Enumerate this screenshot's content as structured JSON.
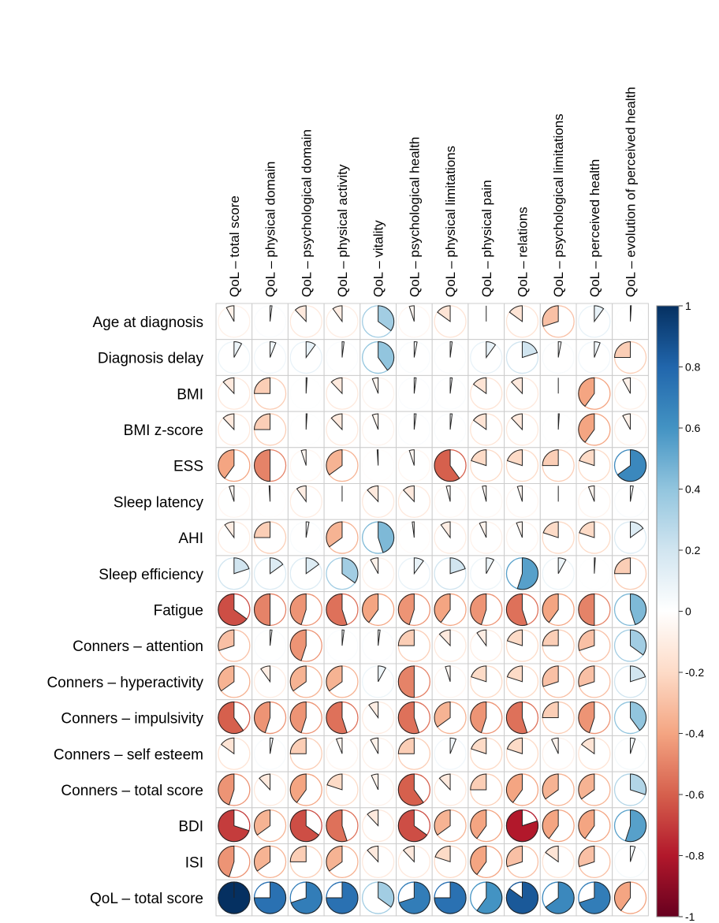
{
  "chart_data": {
    "type": "heatmap",
    "style": "correlation-pie",
    "columns": [
      "QoL – total score",
      "QoL – physical domain",
      "QoL – psychological domain",
      "QoL – physical activity",
      "QoL – vitality",
      "QoL – psychological health",
      "QoL – physical limitations",
      "QoL – physical pain",
      "QoL – relations",
      "QoL – psychological limitations",
      "QoL – perceived health",
      "QoL – evolution of perceived health"
    ],
    "rows": [
      "Age at diagnosis",
      "Diagnosis delay",
      "BMI",
      "BMI z-score",
      "ESS",
      "Sleep latency",
      "AHI",
      "Sleep efficiency",
      "Fatigue",
      "Conners – attention",
      "Conners – hyperactivity",
      "Conners – impulsivity",
      "Conners – self esteem",
      "Conners – total score",
      "BDI",
      "ISI",
      "QoL – total score"
    ],
    "values": [
      [
        -0.08,
        0.02,
        -0.12,
        -0.1,
        0.35,
        -0.05,
        -0.15,
        0.0,
        -0.15,
        -0.3,
        0.1,
        0.01
      ],
      [
        0.08,
        0.06,
        0.1,
        0.02,
        0.4,
        0.03,
        0.02,
        0.1,
        0.2,
        0.03,
        0.06,
        -0.25
      ],
      [
        -0.12,
        -0.25,
        0.01,
        -0.12,
        -0.06,
        0.02,
        0.02,
        -0.15,
        -0.12,
        0.0,
        -0.4,
        -0.08
      ],
      [
        -0.12,
        -0.25,
        0.01,
        -0.12,
        -0.06,
        0.02,
        0.02,
        -0.15,
        -0.12,
        0.01,
        -0.4,
        -0.08
      ],
      [
        -0.4,
        -0.5,
        -0.05,
        -0.35,
        -0.01,
        -0.05,
        -0.6,
        -0.2,
        -0.2,
        -0.25,
        -0.2,
        0.65
      ],
      [
        -0.05,
        -0.01,
        -0.1,
        0.0,
        -0.12,
        -0.12,
        -0.04,
        -0.04,
        -0.05,
        0.0,
        -0.06,
        0.03
      ],
      [
        -0.1,
        -0.25,
        0.03,
        -0.35,
        0.45,
        -0.02,
        -0.1,
        -0.07,
        -0.06,
        -0.2,
        -0.2,
        0.15
      ],
      [
        0.2,
        0.15,
        0.15,
        0.35,
        -0.08,
        0.1,
        0.2,
        0.08,
        0.55,
        0.08,
        0.01,
        -0.25
      ],
      [
        -0.65,
        -0.5,
        -0.45,
        -0.55,
        -0.4,
        -0.45,
        -0.4,
        -0.45,
        -0.55,
        -0.4,
        -0.5,
        0.45
      ],
      [
        -0.3,
        0.02,
        -0.45,
        0.02,
        0.02,
        -0.25,
        -0.12,
        -0.1,
        -0.2,
        -0.25,
        -0.3,
        0.35
      ],
      [
        -0.35,
        -0.1,
        -0.35,
        -0.35,
        0.08,
        -0.5,
        -0.05,
        -0.2,
        -0.2,
        -0.3,
        -0.3,
        0.2
      ],
      [
        -0.6,
        -0.45,
        -0.45,
        -0.55,
        -0.1,
        -0.55,
        -0.35,
        -0.45,
        -0.55,
        -0.25,
        -0.45,
        0.4
      ],
      [
        -0.15,
        0.03,
        -0.25,
        -0.06,
        -0.08,
        -0.25,
        0.06,
        -0.2,
        -0.2,
        -0.07,
        -0.15,
        0.05
      ],
      [
        -0.45,
        -0.12,
        -0.4,
        -0.2,
        -0.07,
        -0.6,
        -0.12,
        -0.25,
        -0.4,
        -0.35,
        -0.35,
        0.3
      ],
      [
        -0.7,
        -0.35,
        -0.65,
        -0.55,
        -0.12,
        -0.65,
        -0.35,
        -0.4,
        -0.8,
        -0.4,
        -0.4,
        0.55
      ],
      [
        -0.45,
        -0.35,
        -0.25,
        -0.35,
        -0.12,
        -0.12,
        -0.2,
        -0.4,
        -0.3,
        -0.15,
        -0.3,
        0.05
      ],
      [
        1.0,
        0.75,
        0.7,
        0.75,
        0.35,
        0.7,
        0.75,
        0.6,
        0.85,
        0.65,
        0.7,
        -0.4
      ]
    ],
    "colorbar": {
      "range": [
        -1,
        1
      ],
      "tick_labels": [
        "1",
        "0.8",
        "0.6",
        "0.4",
        "0.2",
        "0",
        "-0.2",
        "-0.4",
        "-0.6",
        "-0.8",
        "-1"
      ]
    },
    "colors": {
      "negative_strong": "#67001f",
      "negative_mid": "#d6604d",
      "negative_light": "#fddbc7",
      "neutral": "#ffffff",
      "positive_light": "#d1e5f0",
      "positive_mid": "#4393c3",
      "positive_strong": "#053061",
      "grid": "#cccccc"
    }
  }
}
